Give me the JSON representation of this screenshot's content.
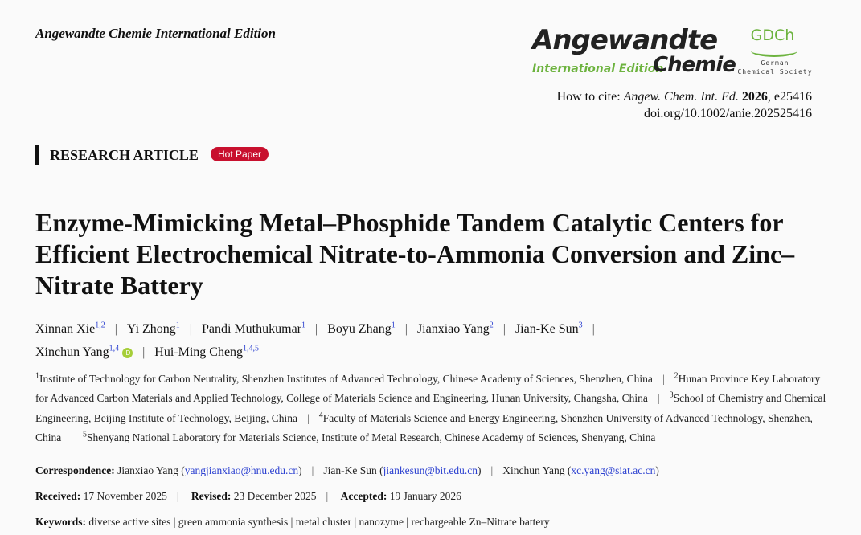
{
  "journal_header": "Angewandte Chemie International Edition",
  "logo": {
    "main": "Angewandte",
    "edition": "International Edition",
    "chemie": "Chemie",
    "society_abbr": "GDCh",
    "society_name_1": "German",
    "society_name_2": "Chemical Society",
    "accent": "#6db33f"
  },
  "cite": {
    "prefix": "How to cite: ",
    "journal": "Angew. Chem. Int. Ed.",
    "year": "2026",
    "article": ", e25416",
    "doi": "doi.org/10.1002/anie.202525416"
  },
  "article_type": "RESEARCH ARTICLE",
  "badge": "Hot Paper",
  "title": "Enzyme-Mimicking Metal–Phosphide Tandem Catalytic Centers for Efficient Electrochemical Nitrate-to-Ammonia Conversion and Zinc–Nitrate Battery",
  "authors": [
    {
      "name": "Xinnan Xie",
      "sup": "1,2"
    },
    {
      "name": "Yi Zhong",
      "sup": "1"
    },
    {
      "name": "Pandi Muthukumar",
      "sup": "1"
    },
    {
      "name": "Boyu Zhang",
      "sup": "1"
    },
    {
      "name": "Jianxiao Yang",
      "sup": "2"
    },
    {
      "name": "Jian-Ke Sun",
      "sup": "3"
    },
    {
      "name": "Xinchun Yang",
      "sup": "1,4",
      "orcid": "iD"
    },
    {
      "name": "Hui-Ming Cheng",
      "sup": "1,4,5"
    }
  ],
  "affiliations": [
    {
      "n": "1",
      "text": "Institute of Technology for Carbon Neutrality, Shenzhen Institutes of Advanced Technology, Chinese Academy of Sciences, Shenzhen, China"
    },
    {
      "n": "2",
      "text": "Hunan Province Key Laboratory for Advanced Carbon Materials and Applied Technology, College of Materials Science and Engineering, Hunan University, Changsha, China"
    },
    {
      "n": "3",
      "text": "School of Chemistry and Chemical Engineering, Beijing Institute of Technology, Beijing, China"
    },
    {
      "n": "4",
      "text": "Faculty of Materials Science and Energy Engineering, Shenzhen University of Advanced Technology, Shenzhen, China"
    },
    {
      "n": "5",
      "text": "Shenyang National Laboratory for Materials Science, Institute of Metal Research, Chinese Academy of Sciences, Shenyang, China"
    }
  ],
  "correspondence": {
    "label": "Correspondence:",
    "entries": [
      {
        "name": "Jianxiao Yang",
        "email": "yangjianxiao@hnu.edu.cn"
      },
      {
        "name": "Jian-Ke Sun",
        "email": "jiankesun@bit.edu.cn"
      },
      {
        "name": "Xinchun Yang",
        "email": "xc.yang@siat.ac.cn"
      }
    ]
  },
  "dates": {
    "received_label": "Received:",
    "received": "17 November 2025",
    "revised_label": "Revised:",
    "revised": "23 December 2025",
    "accepted_label": "Accepted:",
    "accepted": "19 January 2026"
  },
  "keywords": {
    "label": "Keywords:",
    "items": [
      "diverse active sites",
      "green ammonia synthesis",
      "metal cluster",
      "nanozyme",
      "rechargeable Zn–Nitrate battery"
    ]
  }
}
